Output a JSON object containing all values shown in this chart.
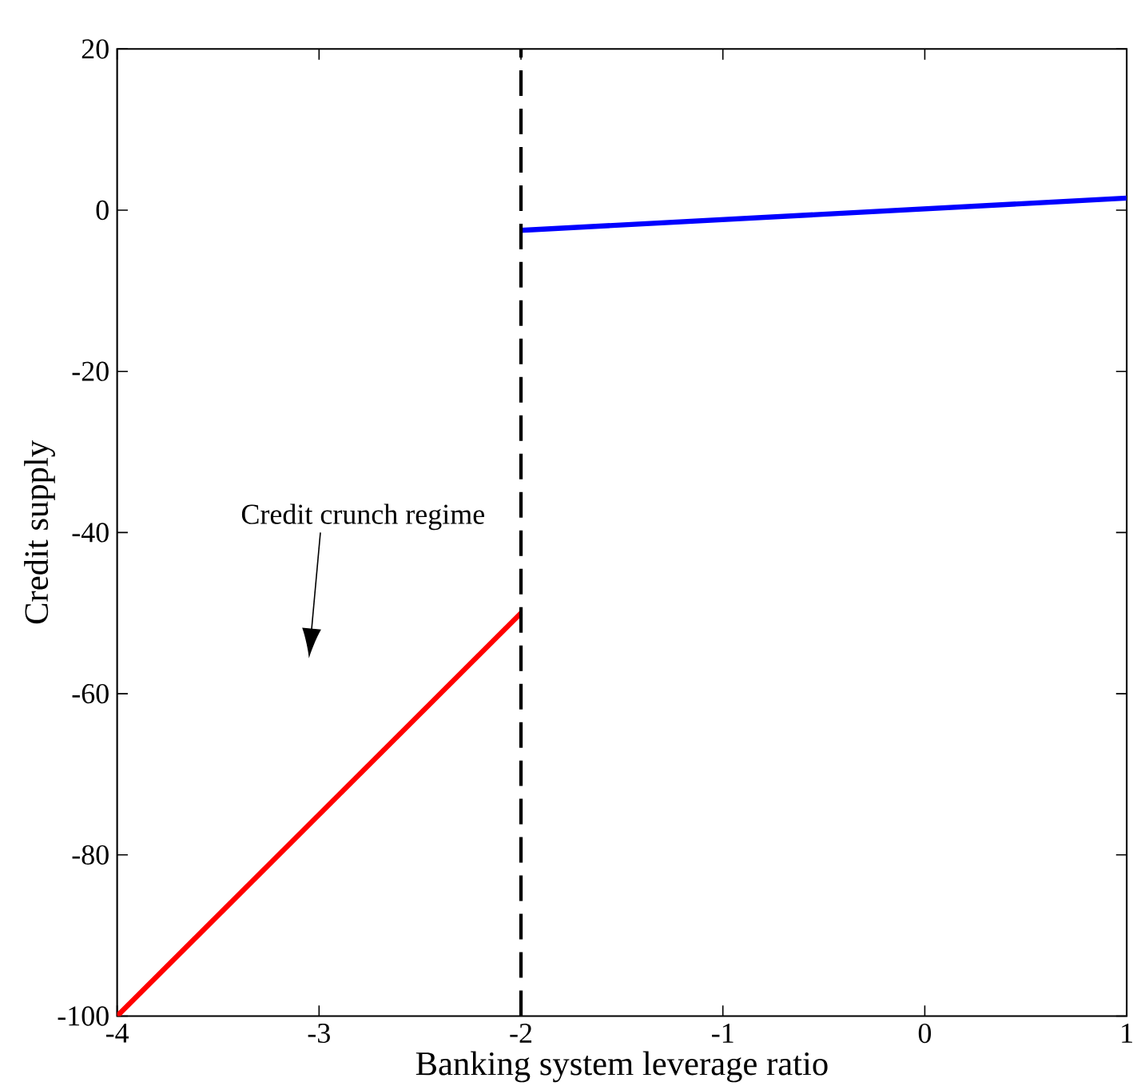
{
  "chart_data": {
    "type": "line",
    "xlabel": "Banking system leverage ratio",
    "ylabel": "Credit supply",
    "annotations": [
      "Credit crunch regime"
    ],
    "series": [
      {
        "color": "#ff0000",
        "x": [
          -4,
          -2
        ],
        "values": [
          -100,
          -50
        ]
      },
      {
        "color": "#0000ff",
        "x": [
          -2,
          1
        ],
        "values": [
          -2.5,
          1.5
        ]
      }
    ],
    "xlim": [
      -4,
      1
    ],
    "xticks": [
      -4,
      -3,
      -2,
      -1,
      0,
      1
    ],
    "ylim": [
      -100,
      20
    ],
    "yticks": [
      -100,
      -80,
      -60,
      -40,
      -20,
      0,
      20
    ],
    "ref_lines": [
      {
        "axis": "x",
        "value": -2,
        "color": "#000000",
        "line_style": "dashed"
      }
    ],
    "line_style": "solid",
    "marker": "none"
  }
}
